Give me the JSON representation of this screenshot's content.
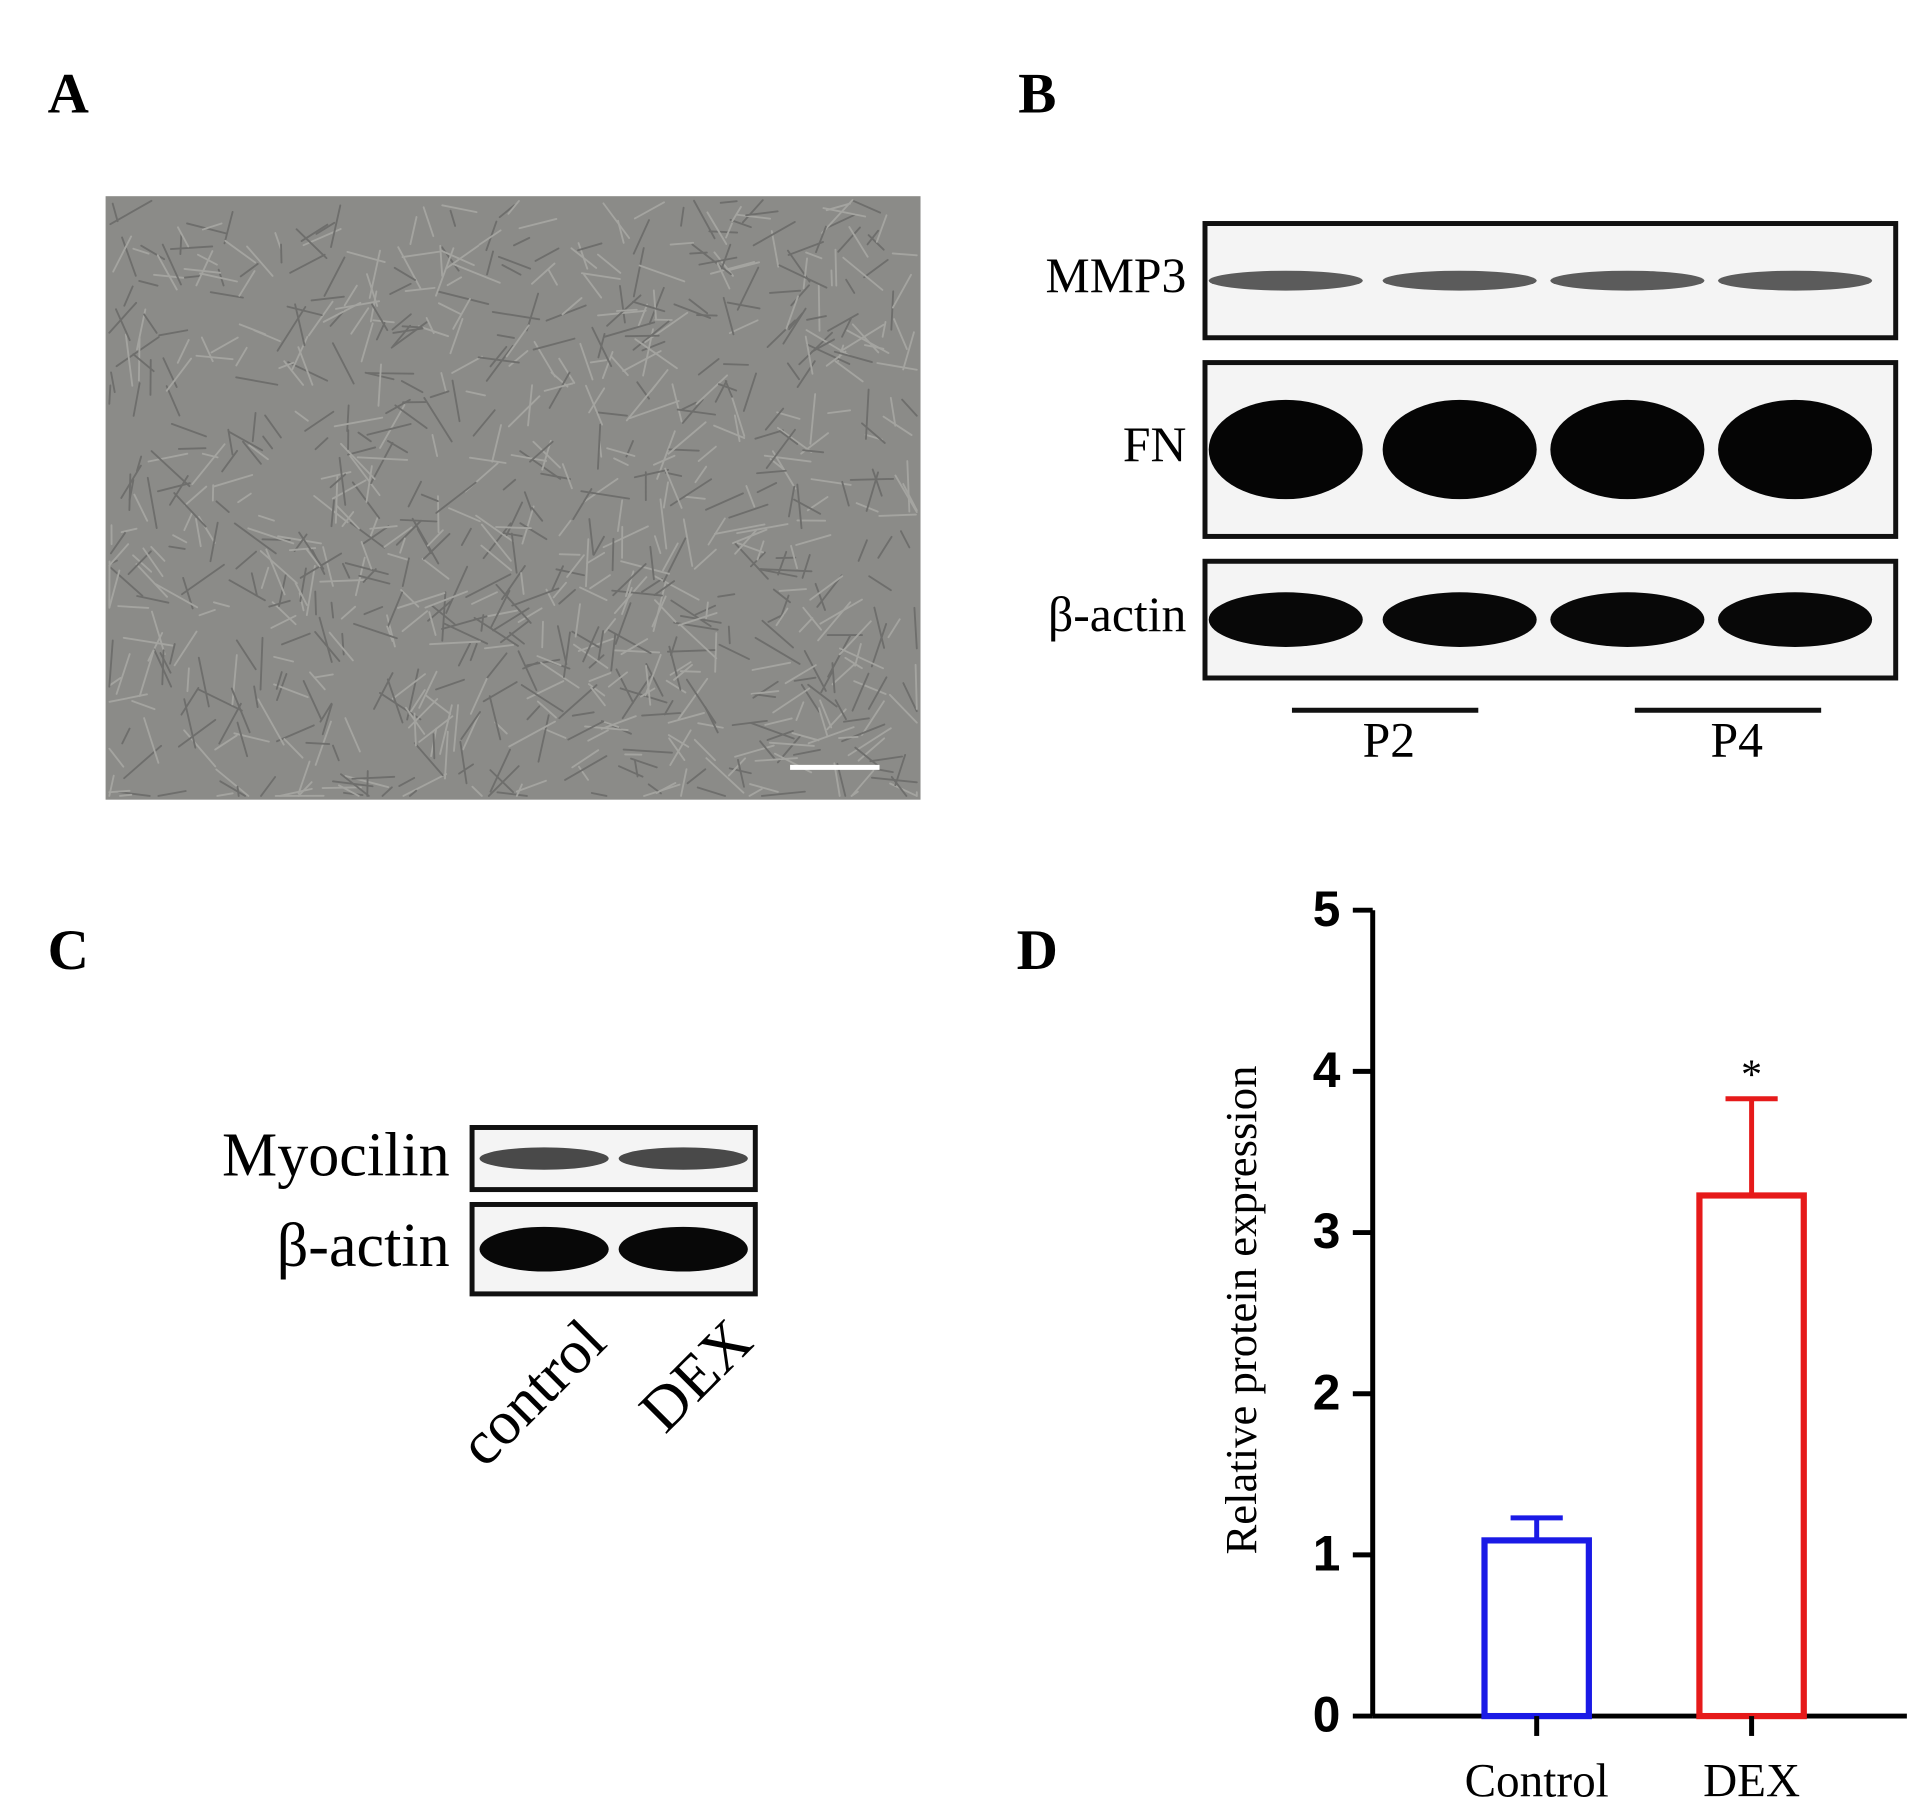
{
  "panels": {
    "a": {
      "label": "A"
    },
    "b": {
      "label": "B",
      "rows": [
        "MMP3",
        "FN",
        "β-actin"
      ],
      "groups": [
        "P2",
        "P4"
      ]
    },
    "c": {
      "label": "C",
      "rows": [
        "Myocilin",
        "β-actin"
      ],
      "lanes": [
        "control",
        "DEX"
      ]
    },
    "d": {
      "label": "D"
    }
  },
  "chart_data": {
    "type": "bar",
    "y_label": "Relative protein expression",
    "categories": [
      "Control",
      "DEX"
    ],
    "values": [
      1.09,
      3.23
    ],
    "errors": [
      0.14,
      0.6
    ],
    "colors": [
      "#1a1ae6",
      "#e61a1a"
    ],
    "annotations": [
      null,
      "*"
    ],
    "ylim": [
      0,
      5
    ],
    "yticks": [
      0,
      1,
      2,
      3,
      4,
      5
    ]
  }
}
